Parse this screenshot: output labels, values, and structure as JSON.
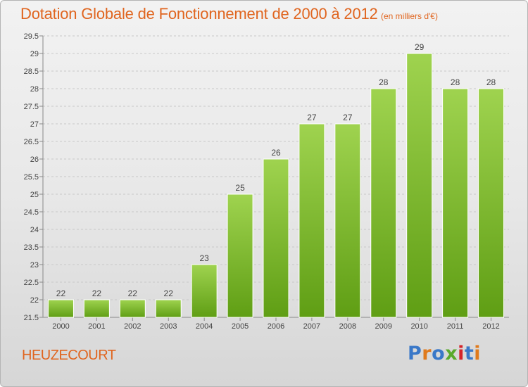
{
  "chart_data": {
    "type": "bar",
    "title": "Dotation Globale de Fonctionnement de 2000 à 2012",
    "unit_label": "(en milliers d'€)",
    "categories": [
      "2000",
      "2001",
      "2002",
      "2003",
      "2004",
      "2005",
      "2006",
      "2007",
      "2008",
      "2009",
      "2010",
      "2011",
      "2012"
    ],
    "values": [
      22,
      22,
      22,
      22,
      23,
      25,
      26,
      27,
      27,
      28,
      29,
      28,
      28
    ],
    "labels": [
      "22",
      "22",
      "22",
      "22",
      "23",
      "25",
      "26",
      "27",
      "27",
      "28",
      "29",
      "28",
      "28"
    ],
    "ylim": [
      21.5,
      29.5
    ],
    "yticks": [
      "21.5",
      "22",
      "22.5",
      "23",
      "23.5",
      "24",
      "24.5",
      "25",
      "25.5",
      "26",
      "26.5",
      "27",
      "27.5",
      "28",
      "28.5",
      "29",
      "29.5"
    ],
    "xlabel": "",
    "ylabel": "",
    "grid": true,
    "bar_color": "#8cc63f"
  },
  "footer": {
    "commune": "HEUZECOURT",
    "logo": {
      "p1": "P",
      "p2": "r",
      "p3": "o",
      "p4": "x",
      "p5": "i",
      "p6": "t",
      "p7": "i"
    }
  }
}
